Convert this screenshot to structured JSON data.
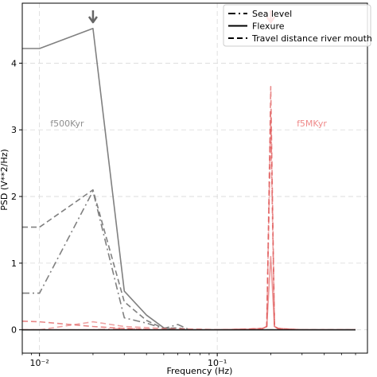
{
  "chart_data": {
    "type": "line",
    "xlabel": "Frequency (Hz)",
    "ylabel": "PSD (V**2/Hz)",
    "xscale": "log",
    "xlim": [
      0.008,
      0.7
    ],
    "ylim": [
      -0.35,
      4.9
    ],
    "grid": true,
    "legend_position": "top-right",
    "x_ticks": [
      {
        "value": 0.01,
        "label": "10⁻²"
      },
      {
        "value": 0.1,
        "label": "10⁻¹"
      }
    ],
    "y_ticks": [
      0,
      1,
      2,
      3,
      4
    ],
    "legend": [
      {
        "label": "Sea level",
        "style": "dashdot"
      },
      {
        "label": "Flexure",
        "style": "solid"
      },
      {
        "label": "Travel distance river mouth",
        "style": "dashed"
      }
    ],
    "annotations": [
      {
        "text": "f500Kyr",
        "x": 0.0115,
        "y": 3.05,
        "color": "#8f8f8f"
      },
      {
        "text": "f5MKyr",
        "x": 0.28,
        "y": 3.05,
        "color": "#ef8a8a"
      }
    ],
    "arrows": [
      {
        "x": 0.02,
        "color": "#666666"
      },
      {
        "x": 0.2,
        "color": "#e05555"
      }
    ],
    "series": [
      {
        "group": "500Kyr",
        "style": "solid",
        "color": "#808080",
        "opacity": 1,
        "x": [
          0.008,
          0.01,
          0.02,
          0.03,
          0.04,
          0.05,
          0.06,
          0.07,
          0.08,
          0.1,
          0.15,
          0.2,
          0.3,
          0.4,
          0.5,
          0.6
        ],
        "y": [
          4.22,
          4.22,
          4.52,
          0.58,
          0.22,
          0.03,
          0.0,
          0.0,
          0.0,
          0.0,
          0.0,
          0.0,
          0.0,
          0.0,
          0.0,
          0.0
        ]
      },
      {
        "group": "500Kyr",
        "style": "dashed",
        "color": "#808080",
        "opacity": 1,
        "x": [
          0.008,
          0.01,
          0.02,
          0.03,
          0.04,
          0.05,
          0.06,
          0.07,
          0.08,
          0.1,
          0.15,
          0.2,
          0.3,
          0.4,
          0.5,
          0.6
        ],
        "y": [
          1.54,
          1.54,
          2.1,
          0.42,
          0.14,
          0.02,
          0.03,
          0.0,
          0.0,
          0.0,
          0.0,
          0.0,
          0.0,
          0.0,
          0.0,
          0.0
        ]
      },
      {
        "group": "500Kyr",
        "style": "dashdot",
        "color": "#808080",
        "opacity": 1,
        "x": [
          0.008,
          0.01,
          0.02,
          0.03,
          0.04,
          0.05,
          0.06,
          0.07,
          0.08,
          0.1,
          0.15,
          0.2,
          0.3,
          0.4,
          0.5,
          0.6
        ],
        "y": [
          0.55,
          0.55,
          2.08,
          0.18,
          0.1,
          0.02,
          0.08,
          0.0,
          0.0,
          0.0,
          0.0,
          0.0,
          0.0,
          0.0,
          0.0,
          0.0
        ]
      },
      {
        "group": "5MKyr",
        "style": "solid",
        "color": "#e05555",
        "opacity": 0.6,
        "x": [
          0.008,
          0.01,
          0.02,
          0.03,
          0.05,
          0.08,
          0.1,
          0.15,
          0.18,
          0.19,
          0.2,
          0.21,
          0.22,
          0.25,
          0.3,
          0.4,
          0.5,
          0.6
        ],
        "y": [
          0.0,
          0.0,
          0.0,
          0.0,
          0.0,
          0.0,
          0.0,
          0.01,
          0.02,
          0.05,
          1.1,
          0.05,
          0.02,
          0.01,
          0.0,
          0.0,
          0.0,
          0.0
        ]
      },
      {
        "group": "5MKyr",
        "style": "dashed",
        "color": "#e05555",
        "opacity": 0.7,
        "x": [
          0.008,
          0.01,
          0.02,
          0.03,
          0.05,
          0.08,
          0.1,
          0.15,
          0.18,
          0.19,
          0.2,
          0.21,
          0.22,
          0.25,
          0.3,
          0.4,
          0.5,
          0.6
        ],
        "y": [
          0.13,
          0.12,
          0.05,
          0.02,
          0.0,
          0.0,
          0.0,
          0.01,
          0.02,
          0.05,
          3.65,
          0.05,
          0.02,
          0.01,
          0.0,
          0.0,
          0.0,
          0.0
        ]
      },
      {
        "group": "5MKyr",
        "style": "dashed",
        "color": "#e05555",
        "opacity": 0.55,
        "x": [
          0.008,
          0.01,
          0.02,
          0.03,
          0.05,
          0.08,
          0.1,
          0.15,
          0.18,
          0.19,
          0.2,
          0.21,
          0.22,
          0.25,
          0.3,
          0.4,
          0.5,
          0.6
        ],
        "y": [
          0.0,
          0.0,
          0.12,
          0.05,
          0.02,
          0.01,
          0.0,
          0.01,
          0.02,
          0.05,
          3.1,
          0.05,
          0.02,
          0.01,
          0.0,
          0.0,
          0.0,
          0.0
        ]
      },
      {
        "group": "5MKyr",
        "style": "dashdot",
        "color": "#e05555",
        "opacity": 0.55,
        "x": [
          0.008,
          0.01,
          0.02,
          0.03,
          0.05,
          0.08,
          0.1,
          0.15,
          0.18,
          0.19,
          0.2,
          0.21,
          0.22,
          0.25,
          0.3,
          0.4,
          0.5,
          0.6
        ],
        "y": [
          0.0,
          0.0,
          0.0,
          0.02,
          0.0,
          0.0,
          0.0,
          0.01,
          0.02,
          0.05,
          3.3,
          0.05,
          0.02,
          0.01,
          0.0,
          0.0,
          0.0,
          0.0
        ]
      },
      {
        "group": "baseline",
        "style": "solid",
        "color": "#222222",
        "opacity": 1,
        "x": [
          0.008,
          0.6
        ],
        "y": [
          0.0,
          0.0
        ]
      }
    ]
  }
}
